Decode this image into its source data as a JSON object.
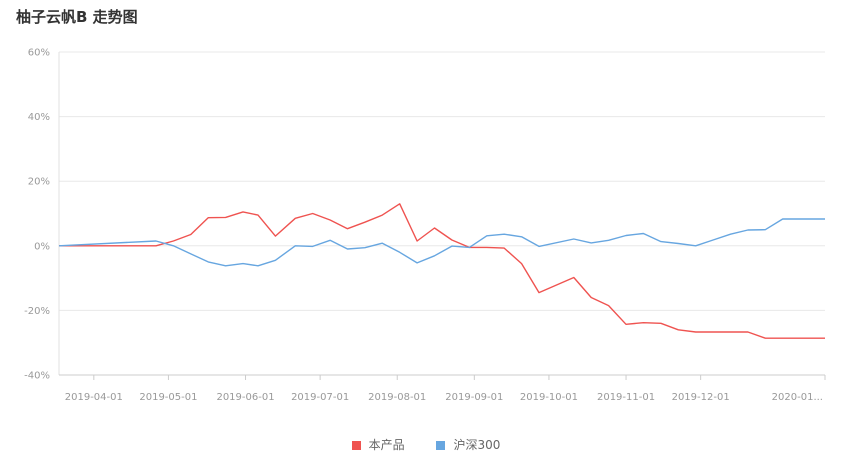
{
  "title": "柚子云帆B 走势图",
  "chart_data": {
    "type": "line",
    "title": "柚子云帆B 走势图",
    "ylim": [
      -40,
      60
    ],
    "yticks": [
      60,
      40,
      20,
      0,
      -20,
      -40
    ],
    "ytick_labels": [
      "60%",
      "40%",
      "20%",
      "0%",
      "-20%",
      "-40%"
    ],
    "xlim": [
      "2019-03-18",
      "2020-01-20"
    ],
    "xticks": [
      "2019-04-01",
      "2019-05-01",
      "2019-06-01",
      "2019-07-01",
      "2019-08-01",
      "2019-09-01",
      "2019-10-01",
      "2019-11-01",
      "2019-12-01",
      "2020-01-20"
    ],
    "xtick_labels": [
      "2019-04-01",
      "2019-05-01",
      "2019-06-01",
      "2019-07-01",
      "2019-08-01",
      "2019-09-01",
      "2019-10-01",
      "2019-11-01",
      "2019-12-01",
      "2020-01..."
    ],
    "grid": true,
    "legend_position": "bottom-center",
    "series": [
      {
        "name": "本产品",
        "color": "#ef5350",
        "x": [
          "2019-03-18",
          "2019-04-26",
          "2019-05-03",
          "2019-05-10",
          "2019-05-17",
          "2019-05-24",
          "2019-05-31",
          "2019-06-06",
          "2019-06-13",
          "2019-06-21",
          "2019-06-28",
          "2019-07-05",
          "2019-07-12",
          "2019-07-19",
          "2019-07-26",
          "2019-08-02",
          "2019-08-09",
          "2019-08-16",
          "2019-08-23",
          "2019-08-30",
          "2019-09-06",
          "2019-09-13",
          "2019-09-20",
          "2019-09-27",
          "2019-10-11",
          "2019-10-18",
          "2019-10-25",
          "2019-11-01",
          "2019-11-08",
          "2019-11-15",
          "2019-11-22",
          "2019-11-29",
          "2019-12-06",
          "2019-12-13",
          "2019-12-20",
          "2019-12-27",
          "2020-01-03",
          "2020-01-10",
          "2020-01-20"
        ],
        "values": [
          0,
          0,
          1.5,
          3.5,
          8.7,
          8.8,
          10.5,
          9.5,
          3,
          8.5,
          10,
          8,
          5.3,
          7.3,
          9.5,
          13,
          1.5,
          5.5,
          1.8,
          -0.5,
          -0.5,
          -0.7,
          -5.5,
          -14.5,
          -9.8,
          -16,
          -18.5,
          -24.3,
          -23.8,
          -24,
          -26,
          -26.7,
          -26.7,
          -26.7,
          -26.7,
          -28.6,
          -28.6,
          -28.6,
          -28.6
        ]
      },
      {
        "name": "沪深300",
        "color": "#67a6e0",
        "x": [
          "2019-03-18",
          "2019-04-26",
          "2019-05-03",
          "2019-05-10",
          "2019-05-17",
          "2019-05-24",
          "2019-05-31",
          "2019-06-06",
          "2019-06-13",
          "2019-06-21",
          "2019-06-28",
          "2019-07-05",
          "2019-07-12",
          "2019-07-19",
          "2019-07-26",
          "2019-08-02",
          "2019-08-09",
          "2019-08-16",
          "2019-08-23",
          "2019-08-30",
          "2019-09-06",
          "2019-09-13",
          "2019-09-20",
          "2019-09-27",
          "2019-10-11",
          "2019-10-18",
          "2019-10-25",
          "2019-11-01",
          "2019-11-08",
          "2019-11-15",
          "2019-11-22",
          "2019-11-29",
          "2019-12-06",
          "2019-12-13",
          "2019-12-20",
          "2019-12-27",
          "2020-01-03",
          "2020-01-10",
          "2020-01-20"
        ],
        "values": [
          0,
          1.5,
          0,
          -2.5,
          -5,
          -6.2,
          -5.5,
          -6.2,
          -4.5,
          0,
          -0.2,
          1.7,
          -1,
          -0.6,
          0.8,
          -2,
          -5.3,
          -3.1,
          -0.1,
          -0.5,
          3.1,
          3.6,
          2.8,
          -0.2,
          2.1,
          0.9,
          1.7,
          3.2,
          3.8,
          1.3,
          0.7,
          0,
          1.8,
          3.6,
          4.9,
          5,
          8.3,
          8.3,
          8.3
        ]
      }
    ]
  }
}
